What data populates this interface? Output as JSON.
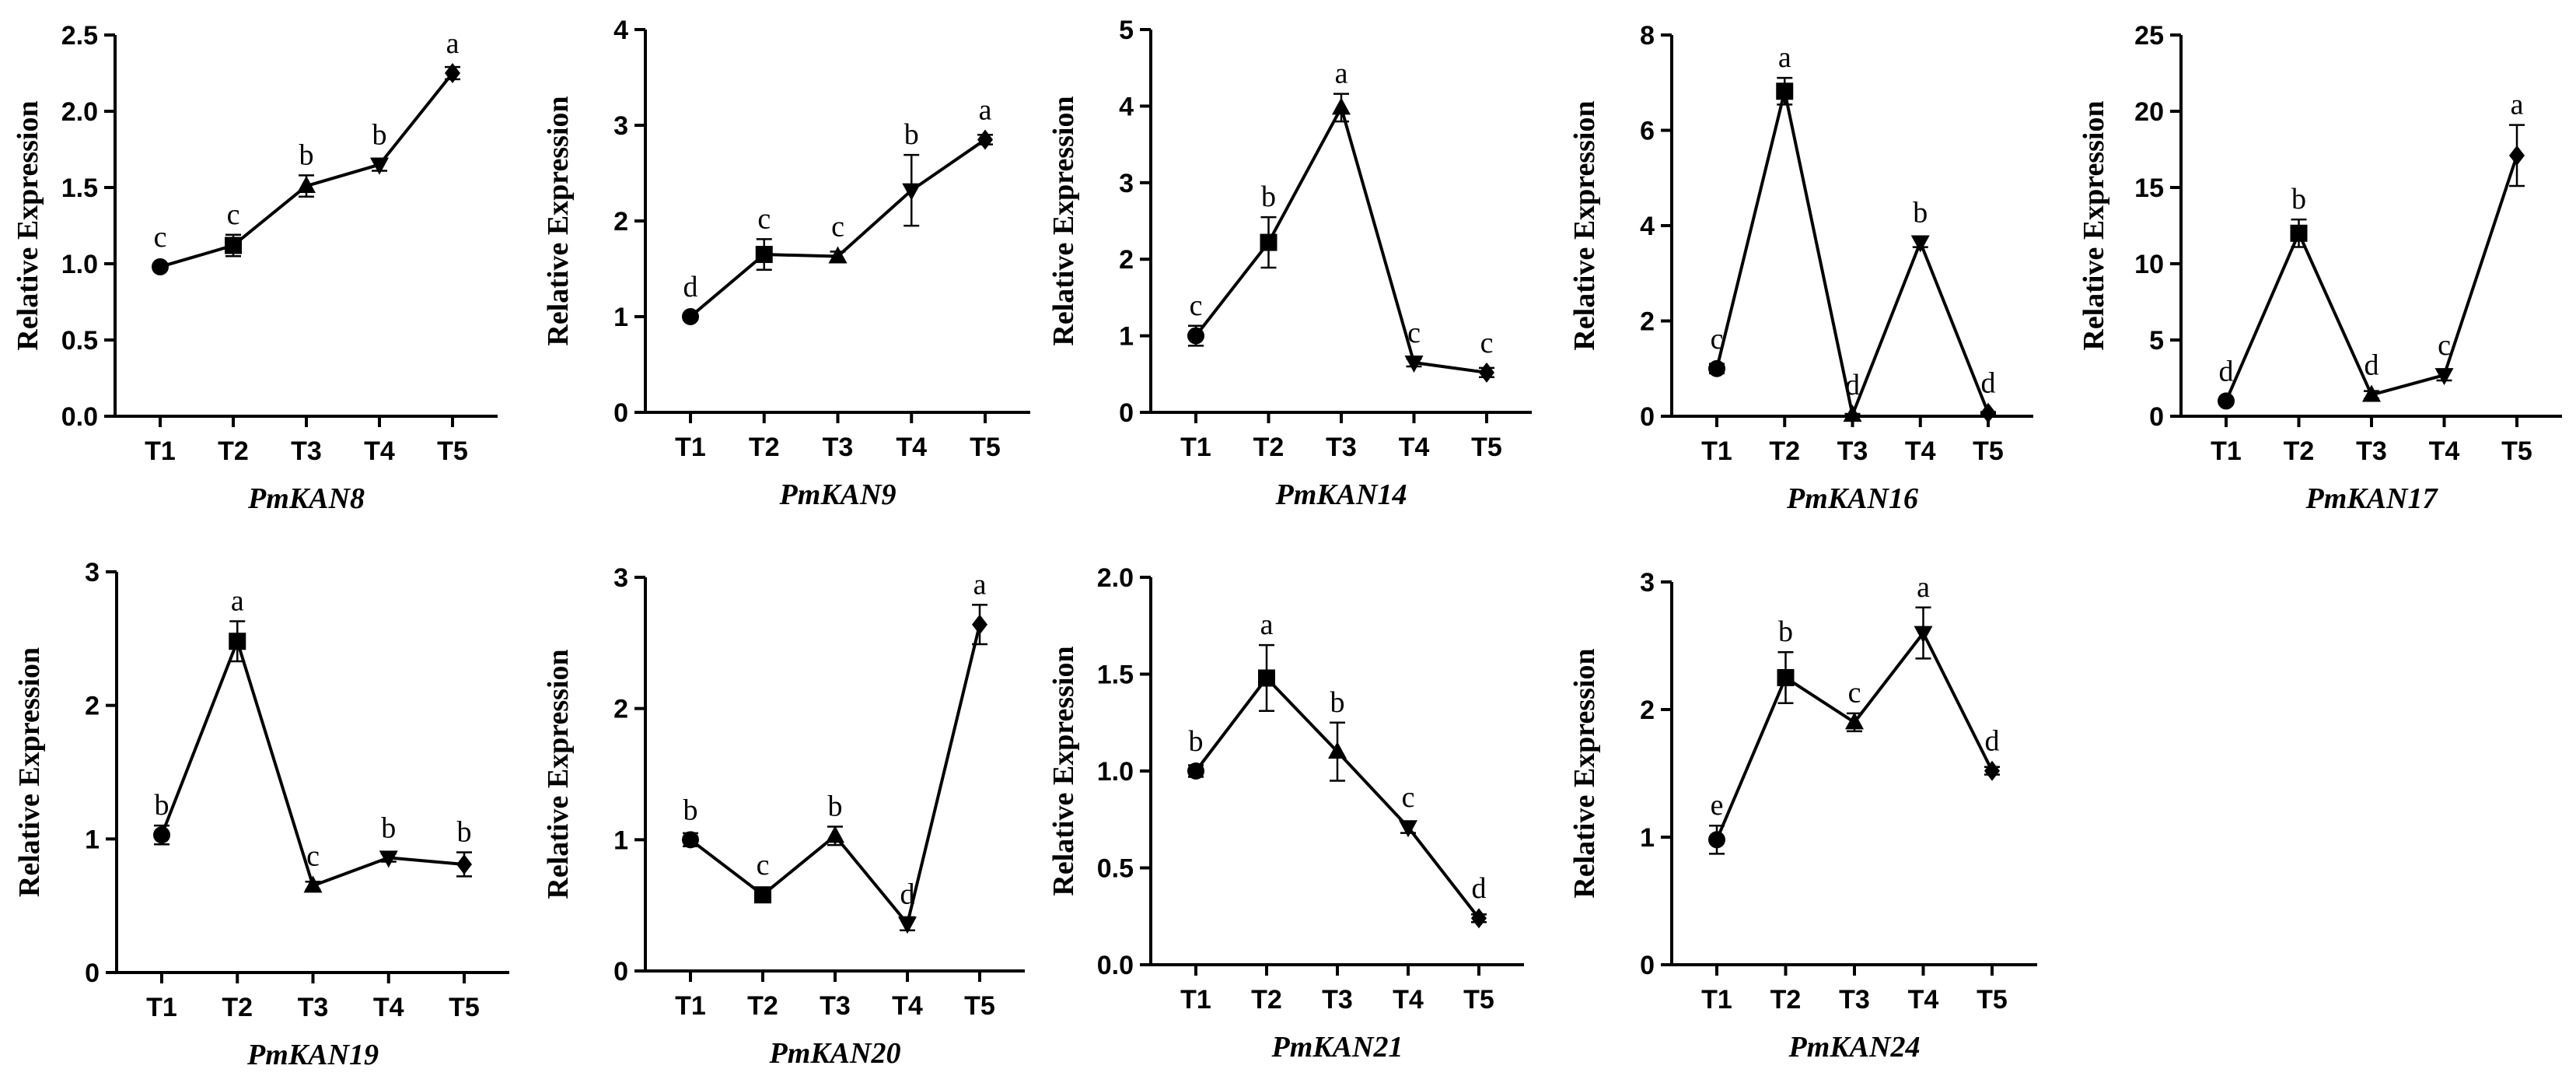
{
  "figure": {
    "ylabel": "Relative Expression",
    "line_color": "#000000"
  },
  "chart_data": [
    {
      "type": "line",
      "title": "PmKAN8",
      "xlabel": "PmKAN8",
      "ylabel": "Relative Expression",
      "categories": [
        "T1",
        "T2",
        "T3",
        "T4",
        "T5"
      ],
      "values": [
        0.98,
        1.12,
        1.51,
        1.65,
        2.25
      ],
      "errors": [
        0.02,
        0.07,
        0.07,
        0.04,
        0.04
      ],
      "letters": [
        "c",
        "c",
        "b",
        "b",
        "a"
      ],
      "markers": [
        "circle",
        "square",
        "triangle-up",
        "triangle-down",
        "diamond"
      ],
      "ylim": [
        0,
        2.5
      ],
      "yticks": [
        0,
        0.5,
        1.0,
        1.5,
        2.0,
        2.5
      ],
      "yticklabels": [
        "0.0",
        "0.5",
        "1.0",
        "1.5",
        "2.0",
        "2.5"
      ]
    },
    {
      "type": "line",
      "title": "PmKAN9",
      "xlabel": "PmKAN9",
      "ylabel": "Relative Expression",
      "categories": [
        "T1",
        "T2",
        "T3",
        "T4",
        "T5"
      ],
      "values": [
        1.0,
        1.65,
        1.63,
        2.32,
        2.85
      ],
      "errors": [
        0.03,
        0.16,
        0.05,
        0.37,
        0.05
      ],
      "letters": [
        "d",
        "c",
        "c",
        "b",
        "a"
      ],
      "markers": [
        "circle",
        "square",
        "triangle-up",
        "triangle-down",
        "diamond"
      ],
      "ylim": [
        0,
        4
      ],
      "yticks": [
        0,
        1,
        2,
        3,
        4
      ],
      "yticklabels": [
        "0",
        "1",
        "2",
        "3",
        "4"
      ]
    },
    {
      "type": "line",
      "title": "PmKAN14",
      "xlabel": "PmKAN14",
      "ylabel": "Relative Expression",
      "categories": [
        "T1",
        "T2",
        "T3",
        "T4",
        "T5"
      ],
      "values": [
        1.0,
        2.22,
        3.98,
        0.65,
        0.52
      ],
      "errors": [
        0.13,
        0.33,
        0.18,
        0.05,
        0.06
      ],
      "letters": [
        "c",
        "b",
        "a",
        "c",
        "c"
      ],
      "markers": [
        "circle",
        "square",
        "triangle-up",
        "triangle-down",
        "diamond"
      ],
      "ylim": [
        0,
        5
      ],
      "yticks": [
        0,
        1,
        2,
        3,
        4,
        5
      ],
      "yticklabels": [
        "0",
        "1",
        "2",
        "3",
        "4",
        "5"
      ]
    },
    {
      "type": "line",
      "title": "PmKAN16",
      "xlabel": "PmKAN16",
      "ylabel": "Relative Expression",
      "categories": [
        "T1",
        "T2",
        "T3",
        "T4",
        "T5"
      ],
      "values": [
        1.0,
        6.82,
        0.03,
        3.65,
        0.07
      ],
      "errors": [
        0.1,
        0.28,
        0.02,
        0.1,
        0.02
      ],
      "letters": [
        "c",
        "a",
        "d",
        "b",
        "d"
      ],
      "markers": [
        "circle",
        "square",
        "triangle-up",
        "triangle-down",
        "diamond"
      ],
      "ylim": [
        0,
        8
      ],
      "yticks": [
        0,
        2,
        4,
        6,
        8
      ],
      "yticklabels": [
        "0",
        "2",
        "4",
        "6",
        "8"
      ]
    },
    {
      "type": "line",
      "title": "PmKAN17",
      "xlabel": "PmKAN17",
      "ylabel": "Relative Expression",
      "categories": [
        "T1",
        "T2",
        "T3",
        "T4",
        "T5"
      ],
      "values": [
        1.0,
        12.0,
        1.4,
        2.7,
        17.1
      ],
      "errors": [
        0.05,
        0.9,
        0.25,
        0.35,
        2.0
      ],
      "letters": [
        "d",
        "b",
        "d",
        "c",
        "a"
      ],
      "markers": [
        "circle",
        "square",
        "triangle-up",
        "triangle-down",
        "diamond"
      ],
      "ylim": [
        0,
        25
      ],
      "yticks": [
        0,
        5,
        10,
        15,
        20,
        25
      ],
      "yticklabels": [
        "0",
        "5",
        "10",
        "15",
        "20",
        "25"
      ]
    },
    {
      "type": "line",
      "title": "PmKAN19",
      "xlabel": "PmKAN19",
      "ylabel": "Relative Expression",
      "categories": [
        "T1",
        "T2",
        "T3",
        "T4",
        "T5"
      ],
      "values": [
        1.03,
        2.48,
        0.65,
        0.86,
        0.81
      ],
      "errors": [
        0.07,
        0.15,
        0.03,
        0.03,
        0.09
      ],
      "letters": [
        "b",
        "a",
        "c",
        "b",
        "b"
      ],
      "markers": [
        "circle",
        "square",
        "triangle-up",
        "triangle-down",
        "diamond"
      ],
      "ylim": [
        0,
        3
      ],
      "yticks": [
        0,
        1,
        2,
        3
      ],
      "yticklabels": [
        "0",
        "1",
        "2",
        "3"
      ]
    },
    {
      "type": "line",
      "title": "PmKAN20",
      "xlabel": "PmKAN20",
      "ylabel": "Relative Expression",
      "categories": [
        "T1",
        "T2",
        "T3",
        "T4",
        "T5"
      ],
      "values": [
        1.0,
        0.58,
        1.03,
        0.36,
        2.64
      ],
      "errors": [
        0.05,
        0.03,
        0.07,
        0.05,
        0.15
      ],
      "letters": [
        "b",
        "c",
        "b",
        "d",
        "a"
      ],
      "markers": [
        "circle",
        "square",
        "triangle-up",
        "triangle-down",
        "diamond"
      ],
      "ylim": [
        0,
        3
      ],
      "yticks": [
        0,
        1,
        2,
        3
      ],
      "yticklabels": [
        "0",
        "1",
        "2",
        "3"
      ]
    },
    {
      "type": "line",
      "title": "PmKAN21",
      "xlabel": "PmKAN21",
      "ylabel": "Relative Expression",
      "categories": [
        "T1",
        "T2",
        "T3",
        "T4",
        "T5"
      ],
      "values": [
        1.0,
        1.48,
        1.1,
        0.71,
        0.24
      ],
      "errors": [
        0.03,
        0.17,
        0.15,
        0.03,
        0.02
      ],
      "letters": [
        "b",
        "a",
        "b",
        "c",
        "d"
      ],
      "markers": [
        "circle",
        "square",
        "triangle-up",
        "triangle-down",
        "diamond"
      ],
      "ylim": [
        0,
        2.0
      ],
      "yticks": [
        0,
        0.5,
        1.0,
        1.5,
        2.0
      ],
      "yticklabels": [
        "0.0",
        "0.5",
        "1.0",
        "1.5",
        "2.0"
      ]
    },
    {
      "type": "line",
      "title": "PmKAN24",
      "xlabel": "PmKAN24",
      "ylabel": "Relative Expression",
      "categories": [
        "T1",
        "T2",
        "T3",
        "T4",
        "T5"
      ],
      "values": [
        0.98,
        2.25,
        1.9,
        2.6,
        1.52
      ],
      "errors": [
        0.11,
        0.2,
        0.07,
        0.2,
        0.03
      ],
      "letters": [
        "e",
        "b",
        "c",
        "a",
        "d"
      ],
      "markers": [
        "circle",
        "square",
        "triangle-up",
        "triangle-down",
        "diamond"
      ],
      "ylim": [
        0,
        3
      ],
      "yticks": [
        0,
        1,
        2,
        3
      ],
      "yticklabels": [
        "0",
        "1",
        "2",
        "3"
      ]
    }
  ]
}
